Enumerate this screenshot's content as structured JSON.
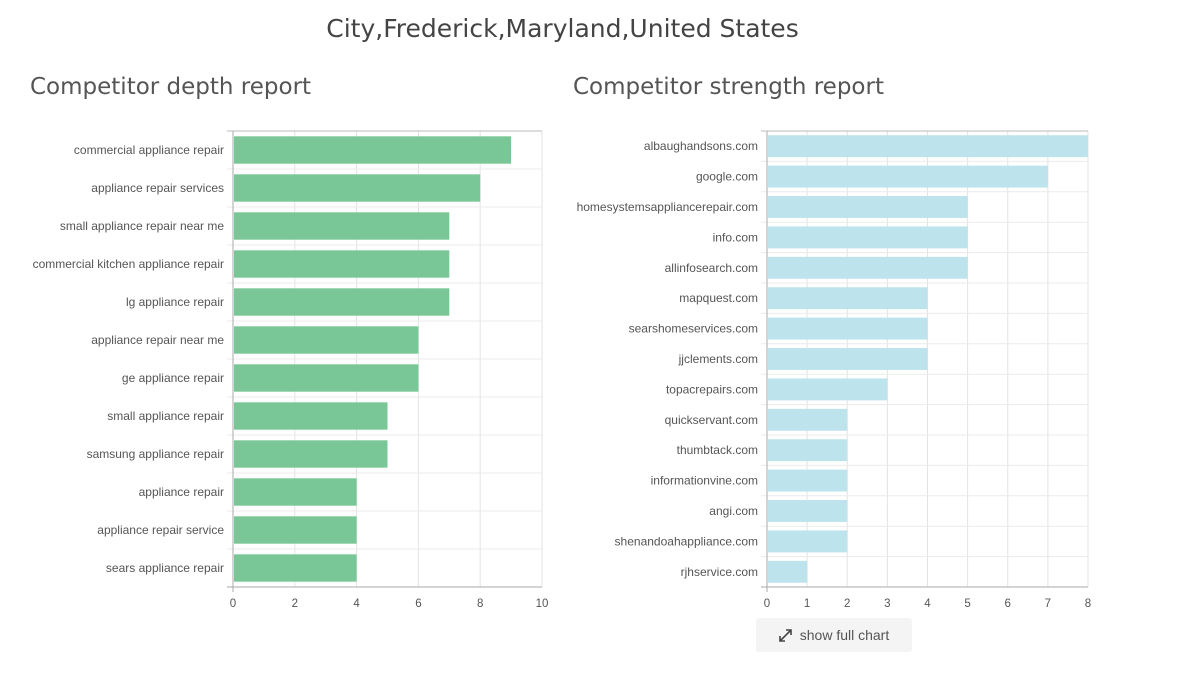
{
  "page": {
    "title": "City,Frederick,Maryland,United States"
  },
  "show_full_chart": {
    "label": "show full chart",
    "icon": "expand-icon"
  },
  "chart_data": [
    {
      "type": "bar",
      "orientation": "horizontal",
      "title": "Competitor depth report",
      "categories": [
        "commercial appliance repair",
        "appliance repair services",
        "small appliance repair near me",
        "commercial kitchen appliance repair",
        "lg appliance repair",
        "appliance repair near me",
        "ge appliance repair",
        "small appliance repair",
        "samsung appliance repair",
        "appliance repair",
        "appliance repair service",
        "sears appliance repair"
      ],
      "values": [
        9,
        8,
        7,
        7,
        7,
        6,
        6,
        5,
        5,
        4,
        4,
        4
      ],
      "xlim": [
        0,
        10
      ],
      "xticks": [
        "0",
        "2",
        "4",
        "6",
        "8",
        "10"
      ],
      "grid": true,
      "color": "#79c797"
    },
    {
      "type": "bar",
      "orientation": "horizontal",
      "title": "Competitor strength report",
      "categories": [
        "albaughandsons.com",
        "google.com",
        "homesystemsappliancerepair.com",
        "info.com",
        "allinfosearch.com",
        "mapquest.com",
        "searshomeservices.com",
        "jjclements.com",
        "topacrepairs.com",
        "quickservant.com",
        "thumbtack.com",
        "informationvine.com",
        "angi.com",
        "shenandoahappliance.com",
        "rjhservice.com"
      ],
      "values": [
        8,
        7,
        5,
        5,
        5,
        4,
        4,
        4,
        3,
        2,
        2,
        2,
        2,
        2,
        1
      ],
      "xlim": [
        0,
        8
      ],
      "xticks": [
        "0",
        "1",
        "2",
        "3",
        "4",
        "5",
        "6",
        "7",
        "8"
      ],
      "grid": true,
      "color": "#bde3ec"
    }
  ]
}
